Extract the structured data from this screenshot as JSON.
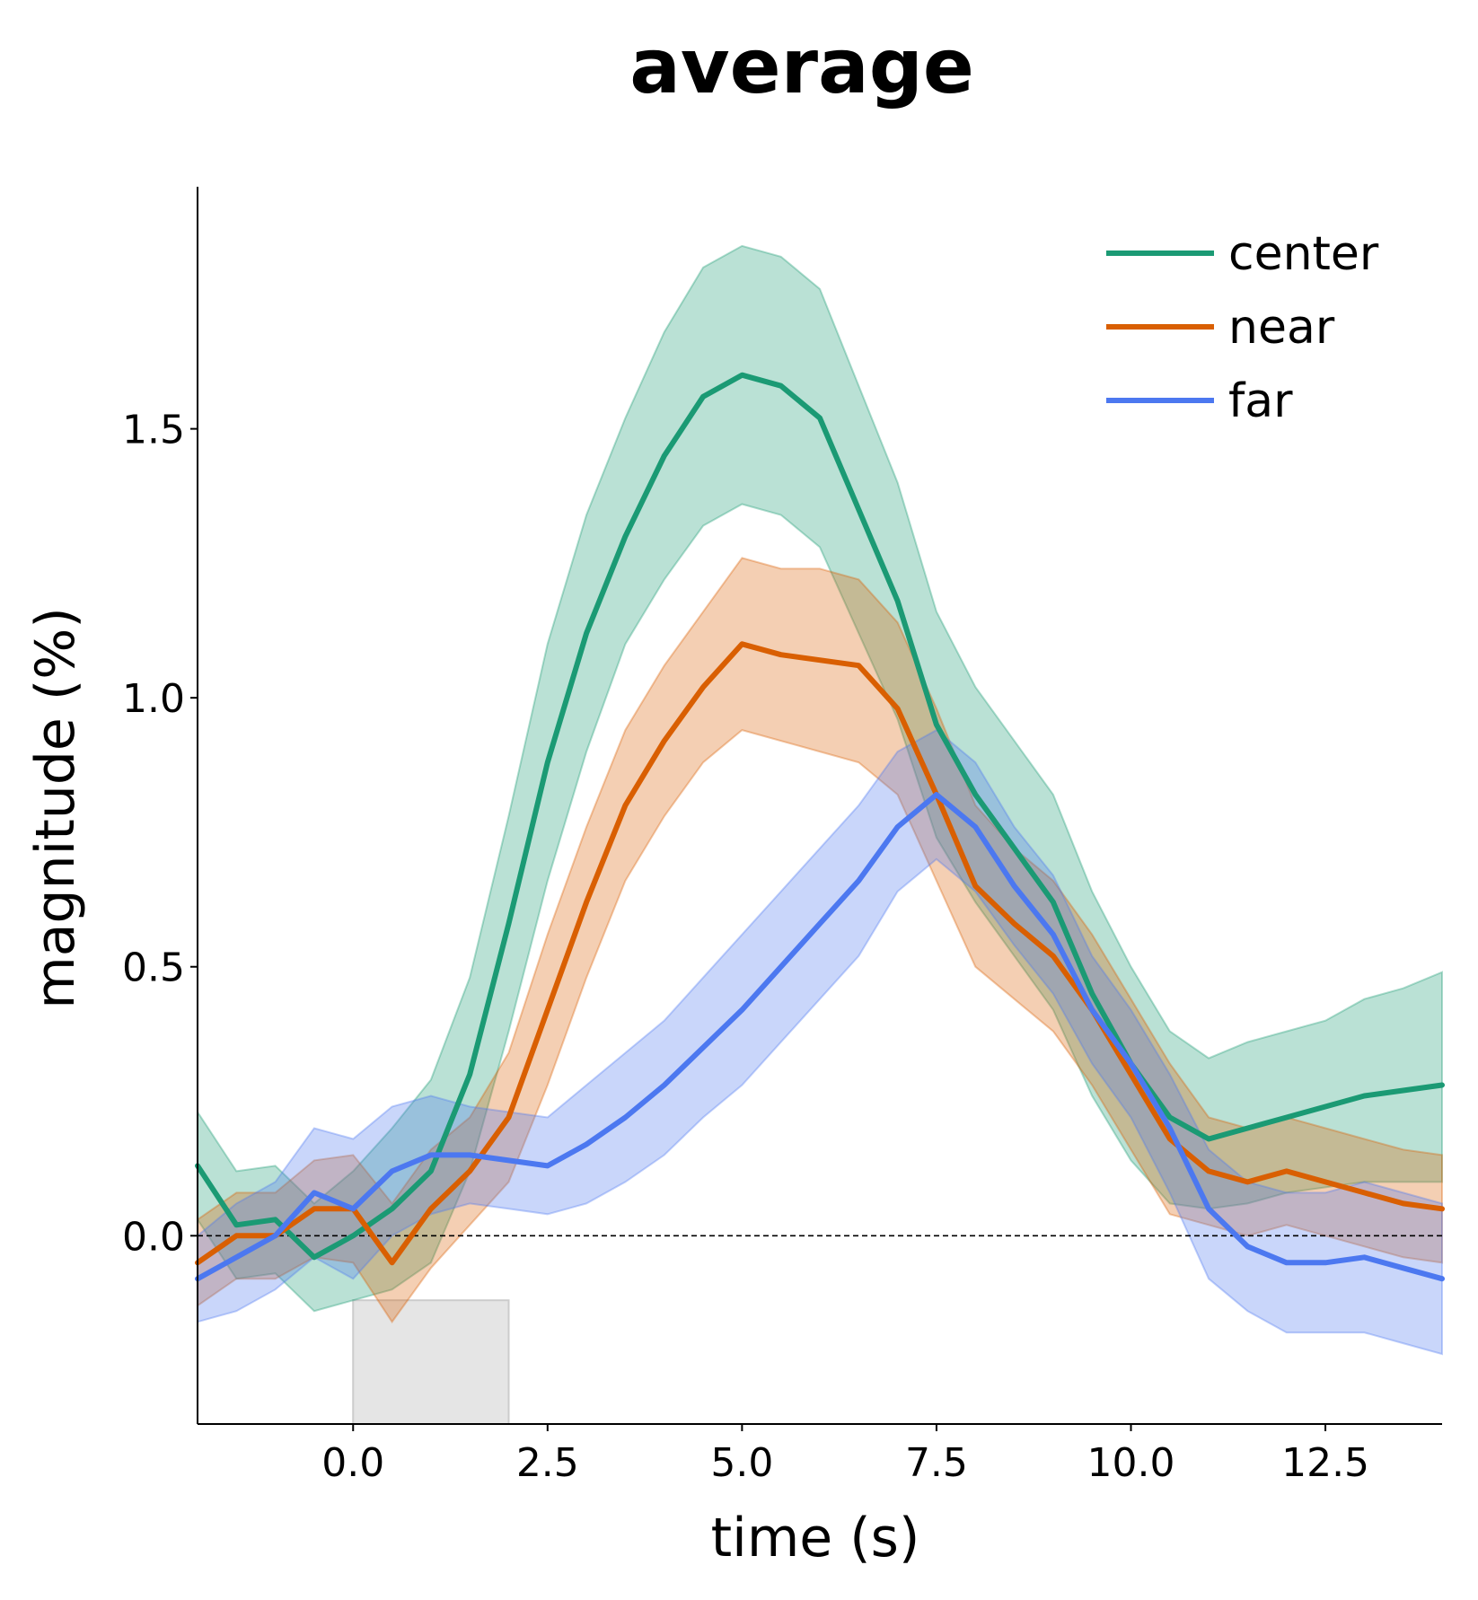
{
  "chart_data": {
    "type": "line",
    "title": "average",
    "xlabel": "time (s)",
    "ylabel": "magnitude (%)",
    "xlim": [
      -2.0,
      14.0
    ],
    "ylim": [
      -0.35,
      1.95
    ],
    "xticks": [
      0.0,
      2.5,
      5.0,
      7.5,
      10.0,
      12.5
    ],
    "xtick_labels": [
      "0.0",
      "2.5",
      "5.0",
      "7.5",
      "10.0",
      "12.5"
    ],
    "yticks": [
      0.0,
      0.5,
      1.0,
      1.5
    ],
    "ytick_labels": [
      "0.0",
      "0.5",
      "1.0",
      "1.5"
    ],
    "reference_line": {
      "y": 0.0,
      "style": "dashed",
      "color": "#000000"
    },
    "stimulus_period": {
      "x0": 0.0,
      "x1": 2.0,
      "y0": -0.35,
      "y1": -0.12,
      "color": "#e5e5e5"
    },
    "grid": false,
    "legend": {
      "position": "top-right"
    },
    "series": [
      {
        "name": "center",
        "color": "#1b9a74",
        "x": [
          -2.0,
          -1.5,
          -1.0,
          -0.5,
          0.0,
          0.5,
          1.0,
          1.5,
          2.0,
          2.5,
          3.0,
          3.5,
          4.0,
          4.5,
          5.0,
          5.5,
          6.0,
          6.5,
          7.0,
          7.5,
          8.0,
          8.5,
          9.0,
          9.5,
          10.0,
          10.5,
          11.0,
          11.5,
          12.0,
          12.5,
          13.0,
          13.5,
          14.0
        ],
        "y": [
          0.13,
          0.02,
          0.03,
          -0.04,
          0.0,
          0.05,
          0.12,
          0.3,
          0.58,
          0.88,
          1.12,
          1.3,
          1.45,
          1.56,
          1.6,
          1.58,
          1.52,
          1.35,
          1.18,
          0.95,
          0.82,
          0.72,
          0.62,
          0.45,
          0.32,
          0.22,
          0.18,
          0.2,
          0.22,
          0.24,
          0.26,
          0.27,
          0.28
        ],
        "lower": [
          0.03,
          -0.08,
          -0.07,
          -0.14,
          -0.12,
          -0.1,
          -0.05,
          0.12,
          0.38,
          0.66,
          0.9,
          1.1,
          1.22,
          1.32,
          1.36,
          1.34,
          1.28,
          1.12,
          0.96,
          0.74,
          0.62,
          0.52,
          0.42,
          0.26,
          0.14,
          0.06,
          0.05,
          0.06,
          0.08,
          0.09,
          0.1,
          0.1,
          0.1
        ],
        "upper": [
          0.23,
          0.12,
          0.13,
          0.06,
          0.12,
          0.2,
          0.29,
          0.48,
          0.78,
          1.1,
          1.34,
          1.52,
          1.68,
          1.8,
          1.84,
          1.82,
          1.76,
          1.58,
          1.4,
          1.16,
          1.02,
          0.92,
          0.82,
          0.64,
          0.5,
          0.38,
          0.33,
          0.36,
          0.38,
          0.4,
          0.44,
          0.46,
          0.49
        ]
      },
      {
        "name": "near",
        "color": "#d95f02",
        "x": [
          -2.0,
          -1.5,
          -1.0,
          -0.5,
          0.0,
          0.5,
          1.0,
          1.5,
          2.0,
          2.5,
          3.0,
          3.5,
          4.0,
          4.5,
          5.0,
          5.5,
          6.0,
          6.5,
          7.0,
          7.5,
          8.0,
          8.5,
          9.0,
          9.5,
          10.0,
          10.5,
          11.0,
          11.5,
          12.0,
          12.5,
          13.0,
          13.5,
          14.0
        ],
        "y": [
          -0.05,
          0.0,
          0.0,
          0.05,
          0.05,
          -0.05,
          0.05,
          0.12,
          0.22,
          0.42,
          0.62,
          0.8,
          0.92,
          1.02,
          1.1,
          1.08,
          1.07,
          1.06,
          0.98,
          0.82,
          0.65,
          0.58,
          0.52,
          0.42,
          0.3,
          0.18,
          0.12,
          0.1,
          0.12,
          0.1,
          0.08,
          0.06,
          0.05
        ],
        "lower": [
          -0.13,
          -0.08,
          -0.08,
          -0.04,
          -0.05,
          -0.16,
          -0.06,
          0.02,
          0.1,
          0.28,
          0.48,
          0.66,
          0.78,
          0.88,
          0.94,
          0.92,
          0.9,
          0.88,
          0.82,
          0.66,
          0.5,
          0.44,
          0.38,
          0.28,
          0.16,
          0.04,
          0.02,
          0.0,
          0.02,
          0.0,
          -0.02,
          -0.04,
          -0.05
        ],
        "upper": [
          0.03,
          0.08,
          0.08,
          0.14,
          0.15,
          0.06,
          0.16,
          0.22,
          0.34,
          0.56,
          0.76,
          0.94,
          1.06,
          1.16,
          1.26,
          1.24,
          1.24,
          1.22,
          1.14,
          0.98,
          0.8,
          0.72,
          0.66,
          0.56,
          0.44,
          0.32,
          0.22,
          0.2,
          0.22,
          0.2,
          0.18,
          0.16,
          0.15
        ]
      },
      {
        "name": "far",
        "color": "#4c78f0",
        "x": [
          -2.0,
          -1.5,
          -1.0,
          -0.5,
          0.0,
          0.5,
          1.0,
          1.5,
          2.0,
          2.5,
          3.0,
          3.5,
          4.0,
          4.5,
          5.0,
          5.5,
          6.0,
          6.5,
          7.0,
          7.5,
          8.0,
          8.5,
          9.0,
          9.5,
          10.0,
          10.5,
          11.0,
          11.5,
          12.0,
          12.5,
          13.0,
          13.5,
          14.0
        ],
        "y": [
          -0.08,
          -0.04,
          0.0,
          0.08,
          0.05,
          0.12,
          0.15,
          0.15,
          0.14,
          0.13,
          0.17,
          0.22,
          0.28,
          0.35,
          0.42,
          0.5,
          0.58,
          0.66,
          0.76,
          0.82,
          0.76,
          0.65,
          0.56,
          0.42,
          0.32,
          0.2,
          0.05,
          -0.02,
          -0.05,
          -0.05,
          -0.04,
          -0.06,
          -0.08
        ],
        "lower": [
          -0.16,
          -0.14,
          -0.1,
          -0.04,
          -0.08,
          0.0,
          0.04,
          0.06,
          0.05,
          0.04,
          0.06,
          0.1,
          0.15,
          0.22,
          0.28,
          0.36,
          0.44,
          0.52,
          0.64,
          0.7,
          0.64,
          0.54,
          0.45,
          0.32,
          0.22,
          0.08,
          -0.08,
          -0.14,
          -0.18,
          -0.18,
          -0.18,
          -0.2,
          -0.22
        ],
        "upper": [
          0.0,
          0.06,
          0.1,
          0.2,
          0.18,
          0.24,
          0.26,
          0.24,
          0.23,
          0.22,
          0.28,
          0.34,
          0.4,
          0.48,
          0.56,
          0.64,
          0.72,
          0.8,
          0.9,
          0.94,
          0.88,
          0.76,
          0.67,
          0.52,
          0.42,
          0.3,
          0.16,
          0.1,
          0.08,
          0.08,
          0.1,
          0.08,
          0.06
        ]
      }
    ]
  }
}
